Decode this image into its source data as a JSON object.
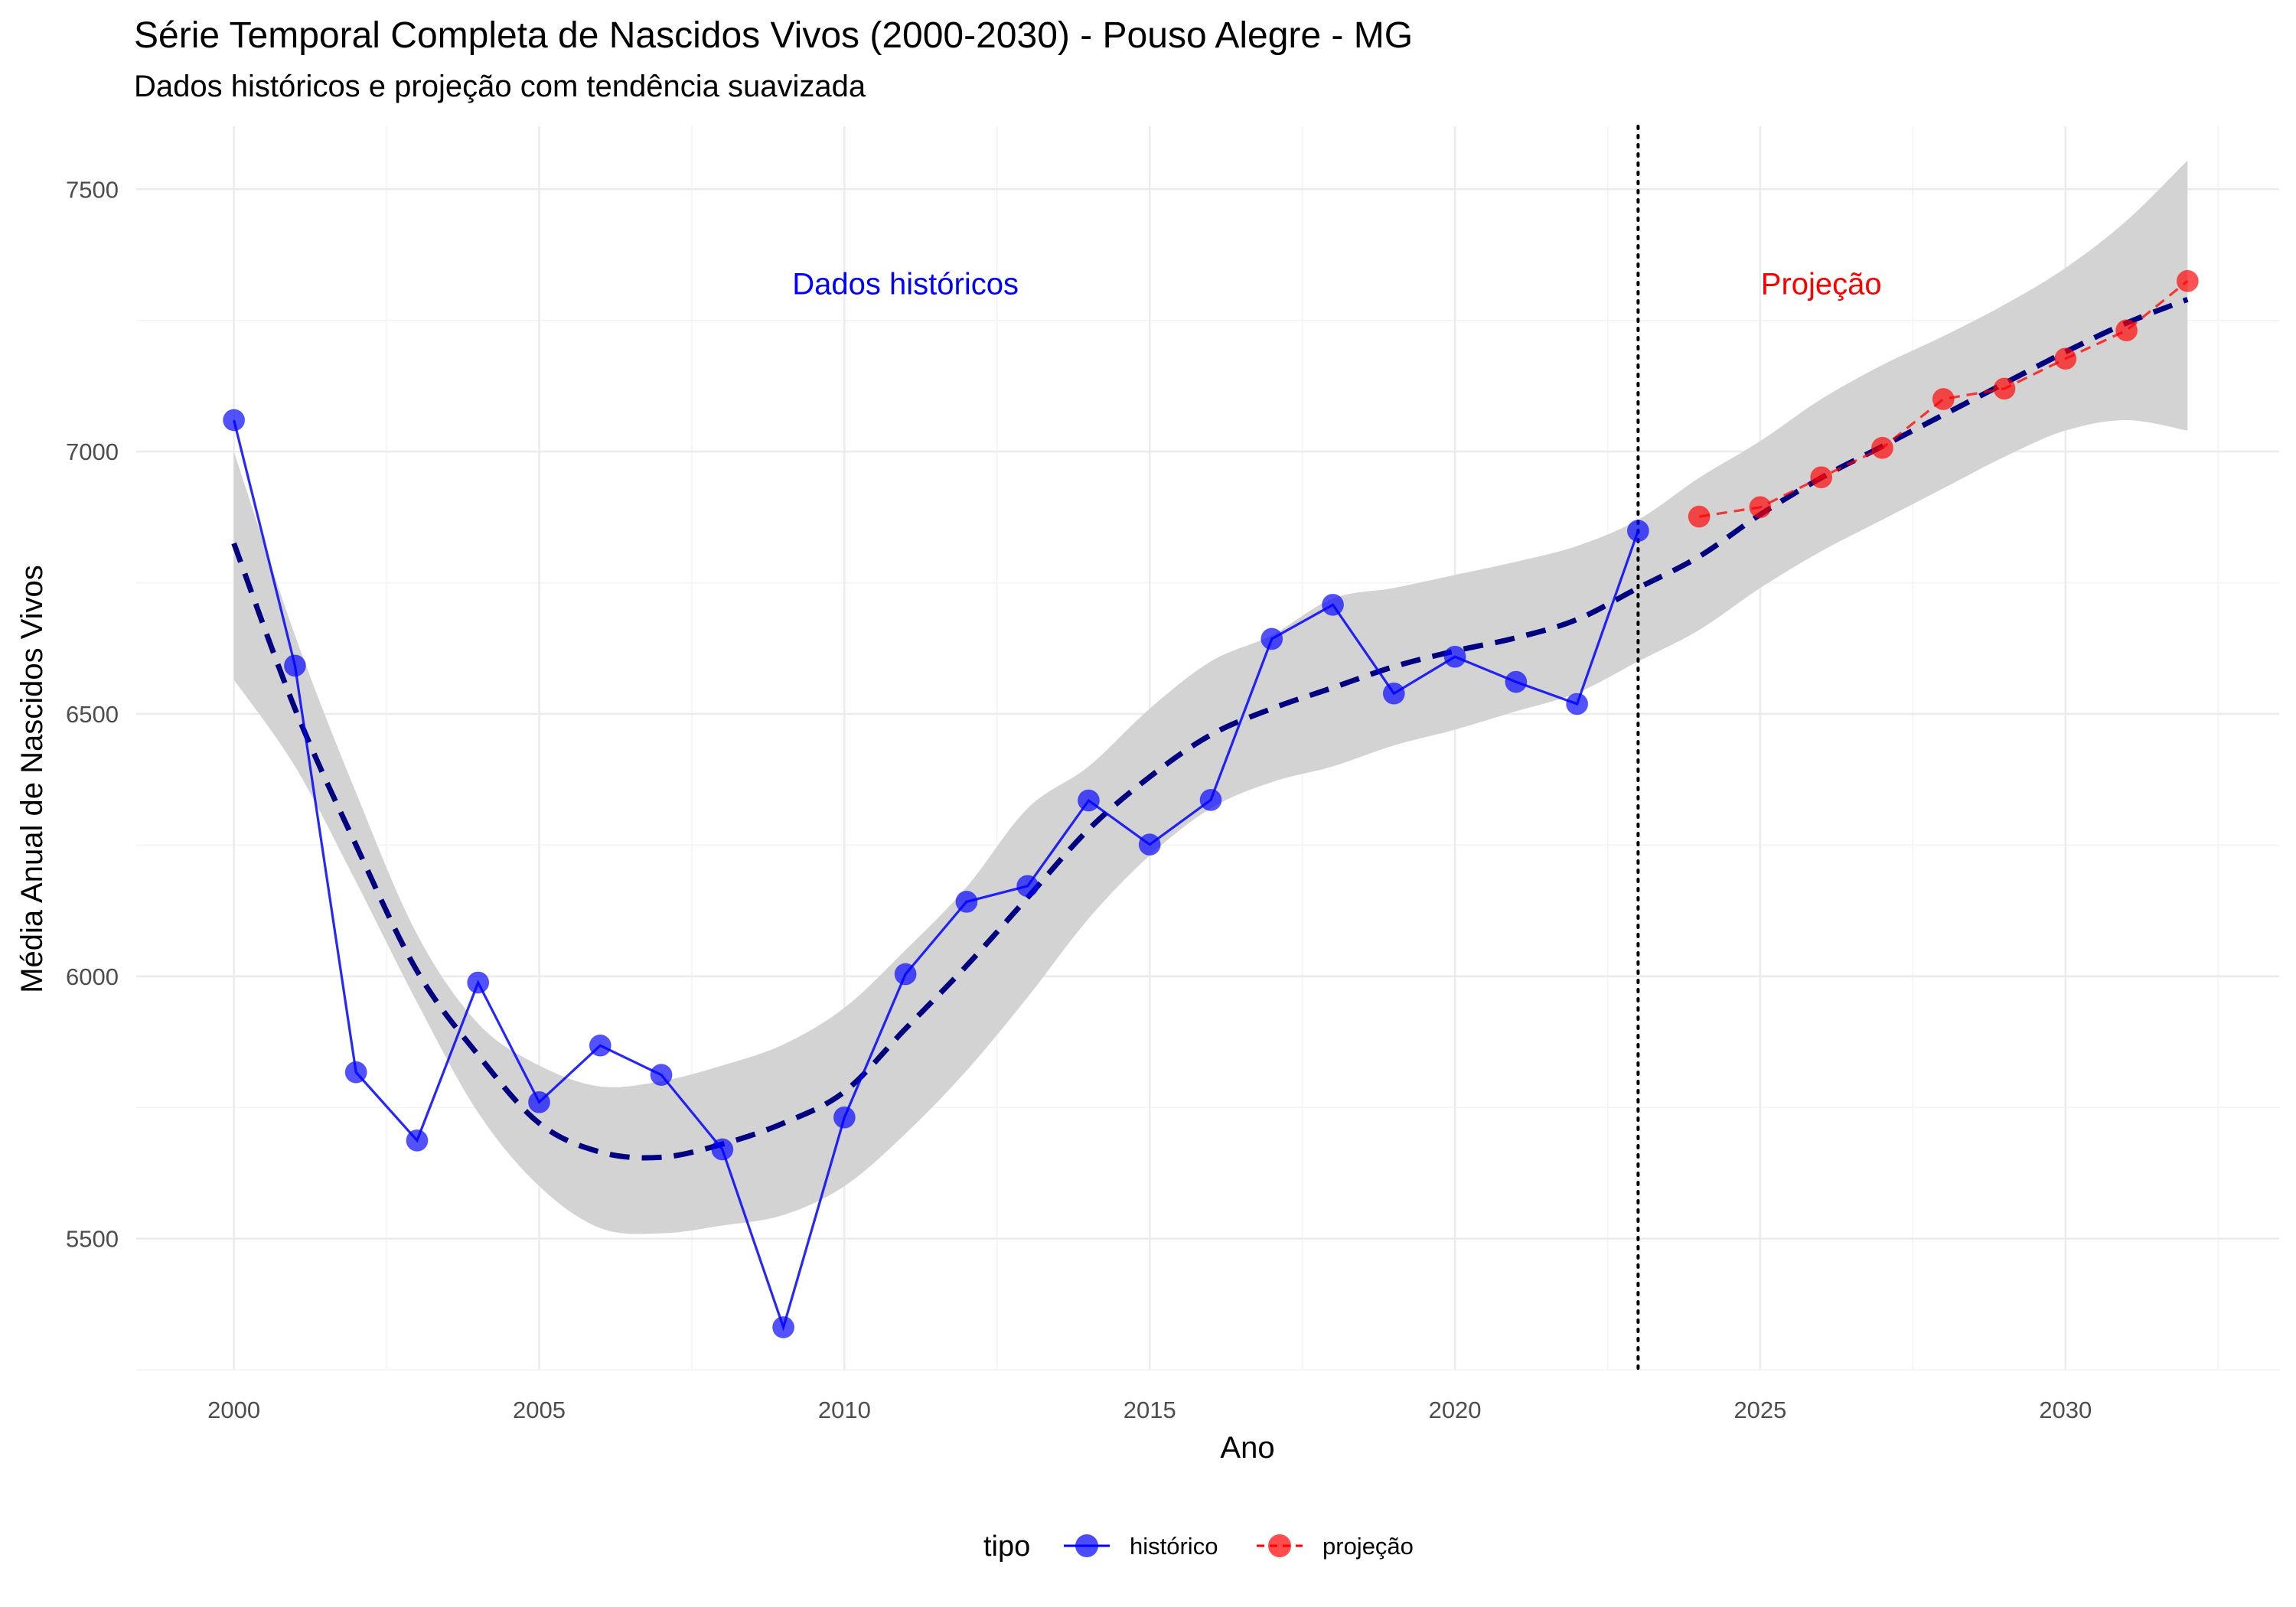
{
  "chart_data": {
    "type": "line",
    "title": "Série Temporal Completa de Nascidos Vivos (2000-2030) -  Pouso Alegre - MG",
    "subtitle": "Dados históricos e projeção com tendência suavizada",
    "xlabel": "Ano",
    "ylabel": "Média Anual de Nascidos Vivos",
    "xlim": [
      1998.4,
      2033.5
    ],
    "ylim": [
      5250,
      7620
    ],
    "x_ticks": [
      2000,
      2005,
      2010,
      2015,
      2020,
      2025,
      2030
    ],
    "y_ticks": [
      5500,
      6000,
      6500,
      7000,
      7500
    ],
    "grid": true,
    "legend": {
      "position": "bottom",
      "title": "tipo",
      "entries": [
        {
          "label": "histórico",
          "color": "#0000ff"
        },
        {
          "label": "projeção",
          "color": "#ff0000"
        }
      ]
    },
    "annotations": [
      {
        "text": "Dados históricos",
        "x": 2011,
        "y": 7320,
        "color": "#0000ff"
      },
      {
        "text": "Projeção",
        "x": 2026,
        "y": 7320,
        "color": "#ff0000"
      }
    ],
    "vline": {
      "x": 2023,
      "style": "dotted",
      "color": "#000000"
    },
    "series": [
      {
        "name": "histórico",
        "color": "#0000ff",
        "line_style": "solid",
        "x": [
          2000,
          2001,
          2002,
          2003,
          2004,
          2005,
          2006,
          2007,
          2008,
          2009,
          2010,
          2011,
          2012,
          2013,
          2014,
          2015,
          2016,
          2017,
          2018,
          2019,
          2020,
          2021,
          2022,
          2023
        ],
        "y": [
          7060,
          6592,
          5817,
          5687,
          5988,
          5760,
          5868,
          5812,
          5670,
          5331,
          5731,
          6004,
          6142,
          6172,
          6335,
          6251,
          6336,
          6643,
          6708,
          6539,
          6609,
          6561,
          6519,
          6849
        ]
      },
      {
        "name": "projeção",
        "color": "#ff0000",
        "line_style": "dashed",
        "x": [
          2024,
          2025,
          2026,
          2027,
          2028,
          2029,
          2030,
          2031,
          2032
        ],
        "y": [
          6876,
          6894,
          6951,
          7007,
          7100,
          7120,
          7177,
          7231,
          7325
        ]
      }
    ],
    "trend": {
      "color": "#000080",
      "line_style": "dashed",
      "band_color": "#d3d3d3",
      "x": [
        2000,
        2001,
        2002,
        2003,
        2004,
        2005,
        2006,
        2007,
        2008,
        2009,
        2010,
        2011,
        2012,
        2013,
        2014,
        2015,
        2016,
        2017,
        2018,
        2019,
        2020,
        2021,
        2022,
        2023,
        2024,
        2025,
        2026,
        2027,
        2028,
        2029,
        2030,
        2031,
        2032
      ],
      "y": [
        6825,
        6510,
        6250,
        6010,
        5850,
        5720,
        5665,
        5655,
        5680,
        5720,
        5780,
        5900,
        6020,
        6150,
        6280,
        6380,
        6460,
        6510,
        6550,
        6590,
        6620,
        6645,
        6680,
        6740,
        6800,
        6880,
        6950,
        7010,
        7070,
        7130,
        7190,
        7245,
        7290
      ],
      "lower": [
        6565,
        6400,
        6180,
        5950,
        5740,
        5600,
        5520,
        5510,
        5525,
        5545,
        5600,
        5700,
        5820,
        5960,
        6110,
        6230,
        6320,
        6370,
        6400,
        6440,
        6470,
        6505,
        6540,
        6600,
        6660,
        6740,
        6810,
        6870,
        6930,
        6990,
        7040,
        7060,
        7040
      ],
      "upper": [
        7000,
        6650,
        6350,
        6080,
        5910,
        5830,
        5790,
        5800,
        5830,
        5870,
        5940,
        6050,
        6170,
        6320,
        6400,
        6510,
        6600,
        6650,
        6720,
        6740,
        6765,
        6790,
        6820,
        6870,
        6950,
        7020,
        7100,
        7165,
        7220,
        7280,
        7350,
        7440,
        7555
      ]
    }
  }
}
